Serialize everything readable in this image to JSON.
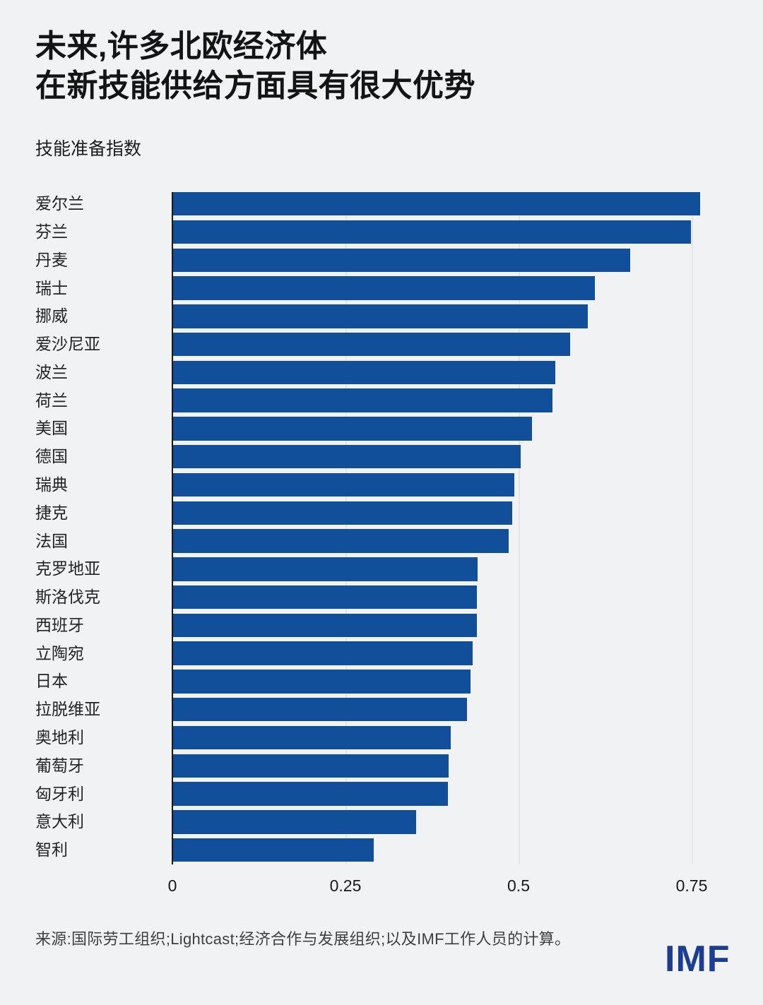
{
  "header": {
    "title_line1": "未来,许多北欧经济体",
    "title_line2": "在新技能供给方面具有很大优势",
    "subtitle": "技能准备指数"
  },
  "chart_data": {
    "type": "bar",
    "orientation": "horizontal",
    "title": "未来,许多北欧经济体 在新技能供给方面具有很大优势",
    "ylabel": "技能准备指数",
    "xlabel": "",
    "xlim": [
      0,
      0.805
    ],
    "x_ticks": [
      0,
      0.25,
      0.5,
      0.75
    ],
    "grid": "vertical-light",
    "legend": "none",
    "categories": [
      "爱尔兰",
      "芬兰",
      "丹麦",
      "瑞士",
      "挪威",
      "爱沙尼亚",
      "波兰",
      "荷兰",
      "美国",
      "德国",
      "瑞典",
      "捷克",
      "法国",
      "克罗地亚",
      "斯洛伐克",
      "西班牙",
      "立陶宛",
      "日本",
      "拉脱维亚",
      "奥地利",
      "葡萄牙",
      "匈牙利",
      "意大利",
      "智利"
    ],
    "values": [
      0.762,
      0.749,
      0.661,
      0.61,
      0.6,
      0.574,
      0.553,
      0.549,
      0.519,
      0.503,
      0.494,
      0.491,
      0.486,
      0.441,
      0.44,
      0.44,
      0.434,
      0.431,
      0.425,
      0.402,
      0.399,
      0.398,
      0.352,
      0.291
    ]
  },
  "footer": {
    "source": "来源:国际劳工组织;Lightcast;经济合作与发展组织;以及IMF工作人员的计算。",
    "logo": "IMF"
  },
  "colors": {
    "bar": "#114F9B",
    "background": "#F0F2F4",
    "gridline": "#E2E4E8",
    "axis": "#17181A",
    "logo_blue": "#1C3E92"
  }
}
